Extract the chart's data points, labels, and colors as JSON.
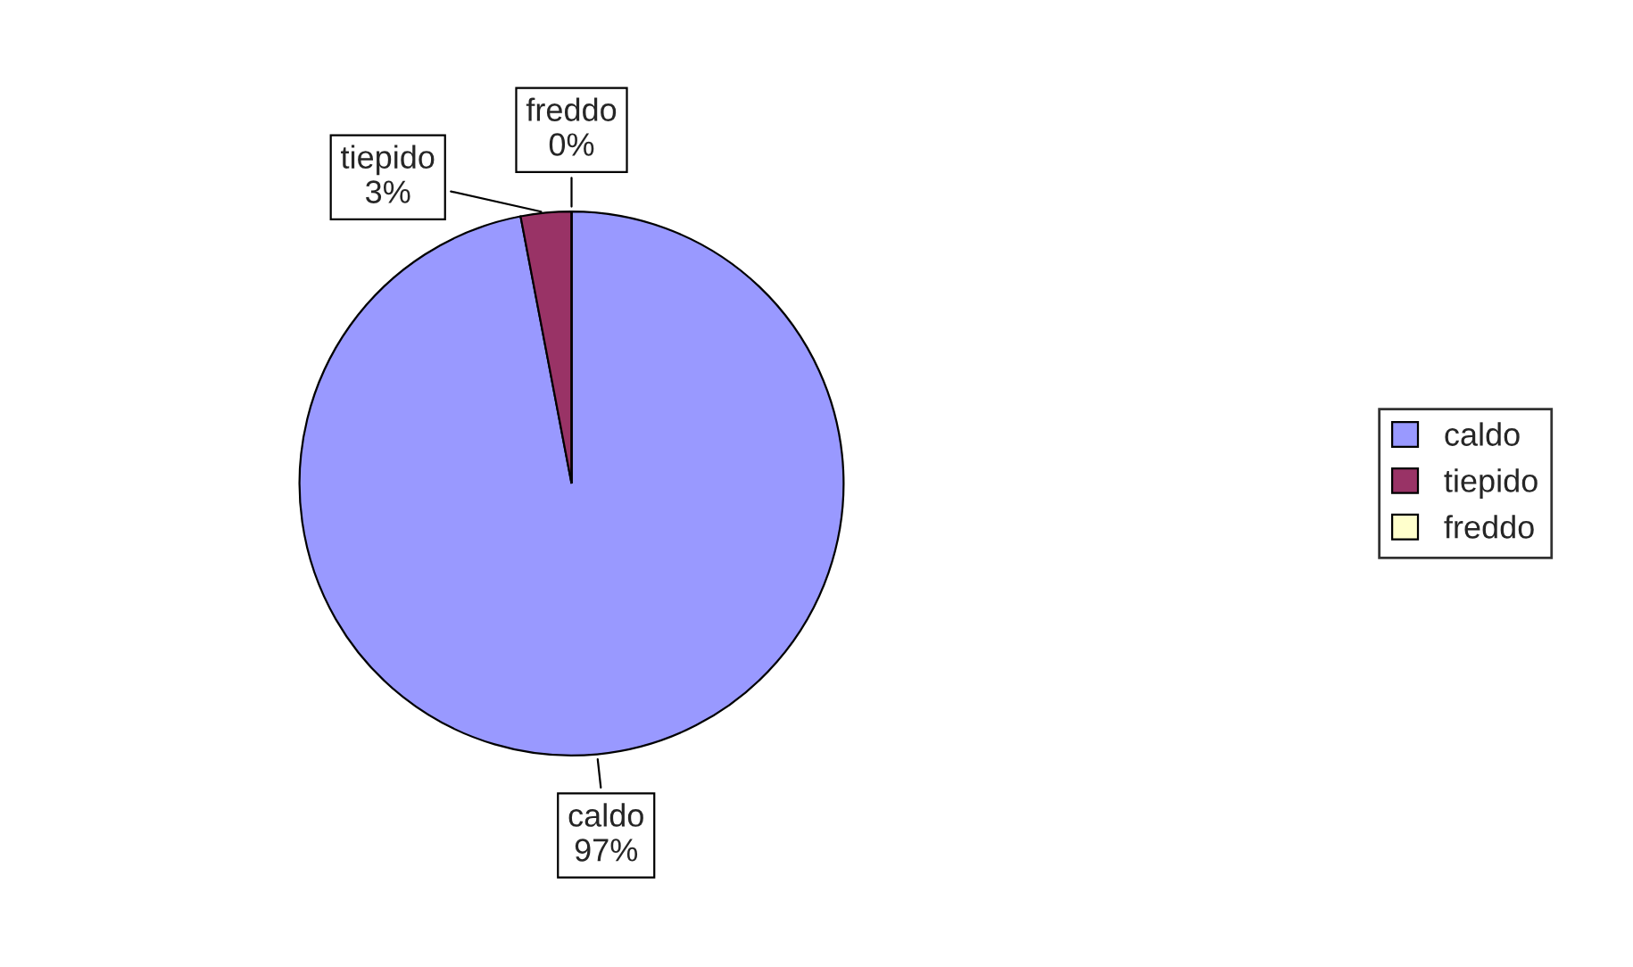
{
  "chart_data": {
    "type": "pie",
    "categories": [
      "caldo",
      "tiepido",
      "freddo"
    ],
    "values": [
      97,
      3,
      0
    ],
    "value_labels": [
      "97%",
      "3%",
      "0%"
    ],
    "colors": [
      "#9999ff",
      "#993366",
      "#ffffcc"
    ],
    "legend": "right"
  }
}
